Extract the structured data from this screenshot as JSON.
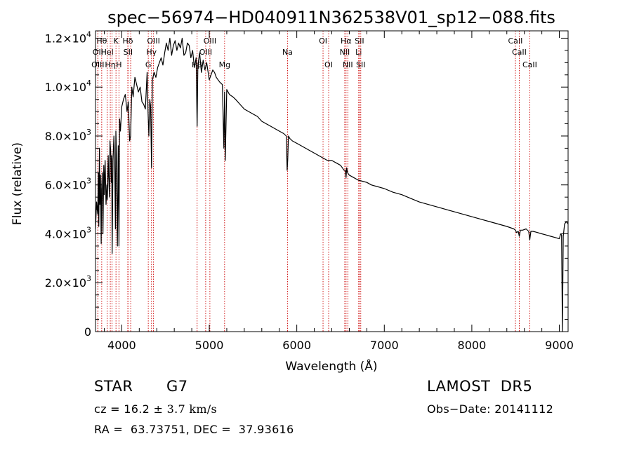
{
  "chart_data": {
    "type": "line",
    "title": "spec−56974−HD040911N362538V01_sp12−088.fits",
    "xlabel": "Wavelength (Å)",
    "ylabel": "Flux (relative)",
    "xlim": [
      3700,
      9100
    ],
    "ylim": [
      0,
      12300
    ],
    "x_ticks": [
      4000,
      5000,
      6000,
      7000,
      8000,
      9000
    ],
    "x_tick_labels": [
      "4000",
      "5000",
      "6000",
      "7000",
      "8000",
      "9000"
    ],
    "y_ticks": [
      0,
      2000,
      4000,
      6000,
      8000,
      10000,
      12000
    ],
    "y_tick_labels": [
      {
        "mant": "0",
        "exp": ""
      },
      {
        "mant": "2.0×10",
        "exp": "3"
      },
      {
        "mant": "4.0×10",
        "exp": "3"
      },
      {
        "mant": "6.0×10",
        "exp": "3"
      },
      {
        "mant": "8.0×10",
        "exp": "3"
      },
      {
        "mant": "1.0×10",
        "exp": "4"
      },
      {
        "mant": "1.2×10",
        "exp": "4"
      }
    ],
    "grid": false,
    "line_color": "#000000",
    "marker_color": "#cc0000",
    "series": [
      {
        "x": [
          3700,
          3712,
          3725,
          3733,
          3738,
          3745,
          3750,
          3757,
          3765,
          3770,
          3778,
          3785,
          3795,
          3800,
          3810,
          3820,
          3830,
          3836,
          3845,
          3850,
          3860,
          3865,
          3873,
          3880,
          3885,
          3890,
          3900,
          3910,
          3920,
          3928,
          3933,
          3940,
          3950,
          3960,
          3968,
          3975,
          3985,
          4000,
          4020,
          4040,
          4060,
          4075,
          4090,
          4101,
          4115,
          4130,
          4150,
          4170,
          4190,
          4210,
          4230,
          4250,
          4270,
          4290,
          4300,
          4310,
          4320,
          4330,
          4340,
          4350,
          4370,
          4390,
          4410,
          4430,
          4450,
          4470,
          4490,
          4510,
          4530,
          4550,
          4570,
          4590,
          4610,
          4630,
          4650,
          4670,
          4690,
          4710,
          4730,
          4750,
          4770,
          4790,
          4810,
          4830,
          4850,
          4861,
          4870,
          4890,
          4910,
          4930,
          4950,
          4970,
          5000,
          5020,
          5040,
          5060,
          5080,
          5100,
          5120,
          5150,
          5167,
          5175,
          5183,
          5200,
          5230,
          5270,
          5300,
          5350,
          5400,
          5450,
          5500,
          5550,
          5600,
          5650,
          5700,
          5750,
          5800,
          5850,
          5880,
          5890,
          5896,
          5905,
          5920,
          5950,
          6000,
          6050,
          6100,
          6150,
          6200,
          6250,
          6300,
          6350,
          6400,
          6450,
          6500,
          6520,
          6540,
          6555,
          6563,
          6570,
          6580,
          6600,
          6650,
          6700,
          6750,
          6800,
          6850,
          6900,
          6950,
          7000,
          7100,
          7200,
          7300,
          7400,
          7500,
          7600,
          7700,
          7800,
          7900,
          8000,
          8100,
          8200,
          8300,
          8400,
          8480,
          8498,
          8510,
          8530,
          8542,
          8555,
          8580,
          8620,
          8650,
          8662,
          8675,
          8700,
          8750,
          8800,
          8850,
          8900,
          8950,
          9000,
          9015,
          9025,
          9035,
          9045,
          9060,
          9080,
          9100
        ],
        "y": [
          4200,
          5300,
          4800,
          6500,
          4300,
          7500,
          5200,
          6400,
          3600,
          5800,
          6500,
          4000,
          6800,
          5600,
          7000,
          5200,
          6000,
          5400,
          7200,
          6400,
          5500,
          7800,
          7400,
          6100,
          7200,
          3200,
          7000,
          8000,
          6800,
          4200,
          8200,
          7200,
          3500,
          7600,
          3500,
          8700,
          8200,
          9200,
          9500,
          9700,
          9000,
          9400,
          7800,
          8000,
          10000,
          9600,
          10400,
          10100,
          9800,
          10000,
          9400,
          9300,
          9100,
          10600,
          9000,
          8000,
          9500,
          9200,
          6700,
          10300,
          10600,
          10400,
          10800,
          11000,
          11200,
          10900,
          11400,
          11800,
          11500,
          12000,
          11300,
          11700,
          11900,
          11500,
          11800,
          11600,
          12000,
          11300,
          11400,
          11800,
          11700,
          11200,
          11500,
          10800,
          11200,
          8400,
          10900,
          11400,
          10600,
          11100,
          10700,
          11000,
          10300,
          10500,
          10700,
          10600,
          10400,
          10300,
          10200,
          10100,
          7500,
          9800,
          7000,
          9900,
          9700,
          9600,
          9500,
          9300,
          9100,
          9000,
          8900,
          8800,
          8600,
          8500,
          8400,
          8300,
          8200,
          8100,
          8000,
          6600,
          7000,
          8000,
          7900,
          7800,
          7700,
          7600,
          7500,
          7400,
          7300,
          7200,
          7100,
          7000,
          7000,
          6900,
          6800,
          6700,
          6600,
          6600,
          6300,
          6700,
          6500,
          6400,
          6300,
          6200,
          6150,
          6100,
          6000,
          5950,
          5900,
          5850,
          5700,
          5600,
          5450,
          5300,
          5200,
          5100,
          5000,
          4900,
          4800,
          4700,
          4600,
          4500,
          4400,
          4300,
          4200,
          4150,
          4050,
          4100,
          3900,
          4150,
          4150,
          4200,
          4100,
          3750,
          4100,
          4100,
          4050,
          4000,
          3950,
          3900,
          3850,
          3800,
          4000,
          3950,
          0,
          3900,
          4400,
          4500,
          4400
        ]
      }
    ],
    "markers": [
      {
        "x": 3771,
        "label": "Hθ",
        "row": 0
      },
      {
        "x": 3727,
        "label": "OII",
        "row": 1
      },
      {
        "x": 3727,
        "label": "OIII",
        "row": 2
      },
      {
        "x": 3834,
        "label": "Hel",
        "row": 1
      },
      {
        "x": 3869,
        "label": "Hη",
        "row": 2
      },
      {
        "x": 3934,
        "label": "K",
        "row": 0
      },
      {
        "x": 3968,
        "label": "H",
        "row": 2
      },
      {
        "x": 3889,
        "label": "",
        "row": -1
      },
      {
        "x": 4069,
        "label": "Hδ",
        "row": 0
      },
      {
        "x": 4072,
        "label": "SII",
        "row": 1
      },
      {
        "x": 4102,
        "label": "",
        "row": -1
      },
      {
        "x": 4303,
        "label": "G",
        "row": 2
      },
      {
        "x": 4340,
        "label": "Hγ",
        "row": 1
      },
      {
        "x": 4363,
        "label": "OIII",
        "row": 0
      },
      {
        "x": 4861,
        "label": "Hβ",
        "row": 2
      },
      {
        "x": 4959,
        "label": "OIII",
        "row": 1
      },
      {
        "x": 5007,
        "label": "OIII",
        "row": 0
      },
      {
        "x": 5175,
        "label": "Mg",
        "row": 2
      },
      {
        "x": 5894,
        "label": "Na",
        "row": 1
      },
      {
        "x": 6300,
        "label": "OI",
        "row": 0
      },
      {
        "x": 6364,
        "label": "OI",
        "row": 2
      },
      {
        "x": 6548,
        "label": "NII",
        "row": 1
      },
      {
        "x": 6583,
        "label": "NII",
        "row": 2
      },
      {
        "x": 6563,
        "label": "Hα",
        "row": 0
      },
      {
        "x": 6707,
        "label": "Li",
        "row": 1
      },
      {
        "x": 6716,
        "label": "SII",
        "row": 0
      },
      {
        "x": 6731,
        "label": "SII",
        "row": 2
      },
      {
        "x": 8498,
        "label": "CaII",
        "row": 0
      },
      {
        "x": 8542,
        "label": "CaII",
        "row": 1
      },
      {
        "x": 8662,
        "label": "CaII",
        "row": 2
      }
    ]
  },
  "info": {
    "object_class": "STAR",
    "subclass": "G7",
    "survey": "LAMOST  DR5",
    "cz_prefix": "cz = 16.2 ",
    "cz_pm": "±",
    "cz_value": " 3.7 km/s",
    "obs_date": "Obs−Date: 20141112",
    "ra_dec": "RA =  63.73751, DEC =  37.93616"
  }
}
